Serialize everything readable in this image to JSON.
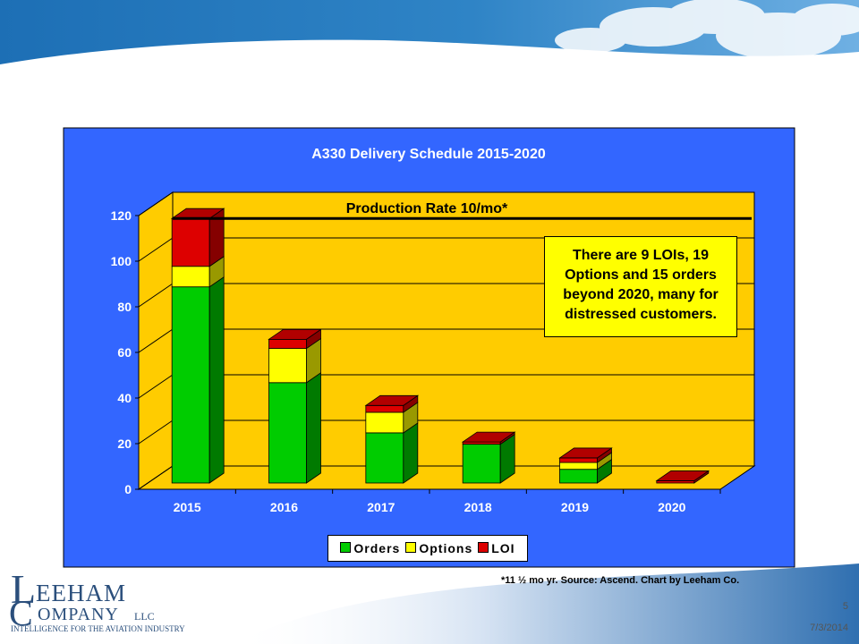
{
  "chart_data": {
    "type": "bar",
    "stacked": true,
    "three_d": true,
    "title": "A330 Delivery Schedule 2015-2020",
    "categories": [
      "2015",
      "2016",
      "2017",
      "2018",
      "2019",
      "2020"
    ],
    "series": [
      {
        "name": "Orders",
        "values": [
          86,
          44,
          22,
          17,
          6,
          0
        ],
        "color": "#00cc00"
      },
      {
        "name": "Options",
        "values": [
          9,
          15,
          9,
          0,
          3,
          0
        ],
        "color": "#ffff00"
      },
      {
        "name": "LOI",
        "values": [
          21,
          4,
          3,
          1,
          2,
          1
        ],
        "color": "#dd0000"
      }
    ],
    "ylim": [
      0,
      120
    ],
    "yticks": [
      "0",
      "20",
      "40",
      "60",
      "80",
      "100",
      "120"
    ],
    "reference_line": {
      "value": 116,
      "label": "Production Rate 10/mo*"
    },
    "annotation": "There are 9 LOIs, 19 Options and 15 orders beyond 2020, many for distressed customers.",
    "legend_position": "bottom",
    "plot_background": "#ffcc00",
    "chart_background": "#3366ff"
  },
  "slide": {
    "footnote": "*11 ½ mo yr. Source: Ascend. Chart by Leeham Co.",
    "page_number": "5",
    "date": "7/3/2014"
  },
  "logo": {
    "letter_l": "L",
    "eeham": "EEHAM",
    "letter_c": "C",
    "ompany": "OMPANY",
    "llc": "LLC",
    "tagline": "INTELLIGENCE FOR THE AVIATION INDUSTRY"
  }
}
